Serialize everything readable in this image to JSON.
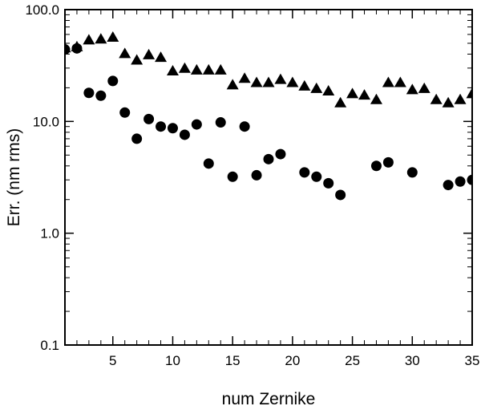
{
  "chart_data": {
    "type": "scatter",
    "title": "",
    "xlabel": "num Zernike",
    "ylabel": "Err. (nm rms)",
    "xlim": [
      1,
      35
    ],
    "ylim": [
      0.1,
      100
    ],
    "yscale": "log",
    "grid": false,
    "legend": "none",
    "x_ticks": [
      5,
      10,
      15,
      20,
      25,
      30,
      35
    ],
    "x_tick_labels": [
      "5",
      "10",
      "15",
      "20",
      "25",
      "30",
      "35"
    ],
    "y_ticks": [
      0.1,
      1,
      10,
      100
    ],
    "y_tick_labels": [
      "0.1",
      "1.0",
      "10.0",
      "100.0"
    ],
    "series": [
      {
        "marker": "triangle",
        "color": "#000000",
        "x": [
          1,
          2,
          3,
          4,
          5,
          6,
          7,
          8,
          9,
          10,
          11,
          12,
          13,
          14,
          15,
          16,
          17,
          18,
          19,
          20,
          21,
          22,
          23,
          24,
          25,
          26,
          27,
          28,
          29,
          30,
          31,
          32,
          33,
          34,
          35
        ],
        "y": [
          45,
          46,
          53,
          54,
          56,
          40,
          35,
          39,
          37,
          28,
          29.5,
          28.5,
          28.5,
          28.5,
          21,
          24,
          22,
          22,
          23.5,
          22,
          20.5,
          19.5,
          18.5,
          14.5,
          17.5,
          17,
          15.5,
          22,
          22,
          19,
          19.5,
          15.5,
          14.5,
          15.5,
          17.5
        ]
      },
      {
        "marker": "circle",
        "color": "#000000",
        "x": [
          1,
          2,
          3,
          4,
          5,
          6,
          7,
          8,
          9,
          10,
          11,
          12,
          13,
          14,
          15,
          16,
          17,
          18,
          19,
          21,
          22,
          23,
          24,
          27,
          28,
          30,
          33,
          34,
          35
        ],
        "y": [
          44,
          45,
          18,
          17,
          23,
          12,
          7,
          10.5,
          9,
          8.7,
          7.6,
          9.4,
          4.2,
          9.8,
          3.2,
          9,
          3.3,
          4.6,
          5.1,
          3.5,
          3.2,
          2.8,
          2.2,
          4,
          4.3,
          3.5,
          2.7,
          2.9,
          3
        ]
      }
    ]
  }
}
